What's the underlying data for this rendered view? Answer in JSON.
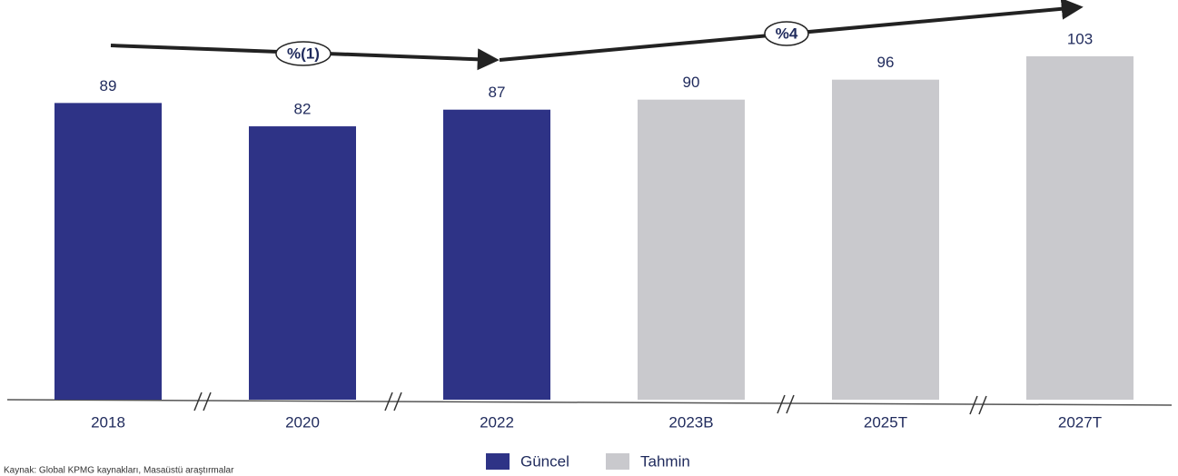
{
  "chart_data": {
    "type": "bar",
    "categories": [
      "2018",
      "2020",
      "2022",
      "2023B",
      "2025T",
      "2027T"
    ],
    "series": [
      {
        "name": "Güncel",
        "color": "#2e3386",
        "values": [
          89,
          82,
          87,
          null,
          null,
          null
        ]
      },
      {
        "name": "Tahmin",
        "color": "#c9c9cd",
        "values": [
          null,
          null,
          null,
          90,
          96,
          103
        ]
      }
    ],
    "annotations": [
      "%(1)",
      "%4"
    ],
    "source": "Kaynak: Global KPMG kaynakları, Masaüstü araştırmalar"
  }
}
